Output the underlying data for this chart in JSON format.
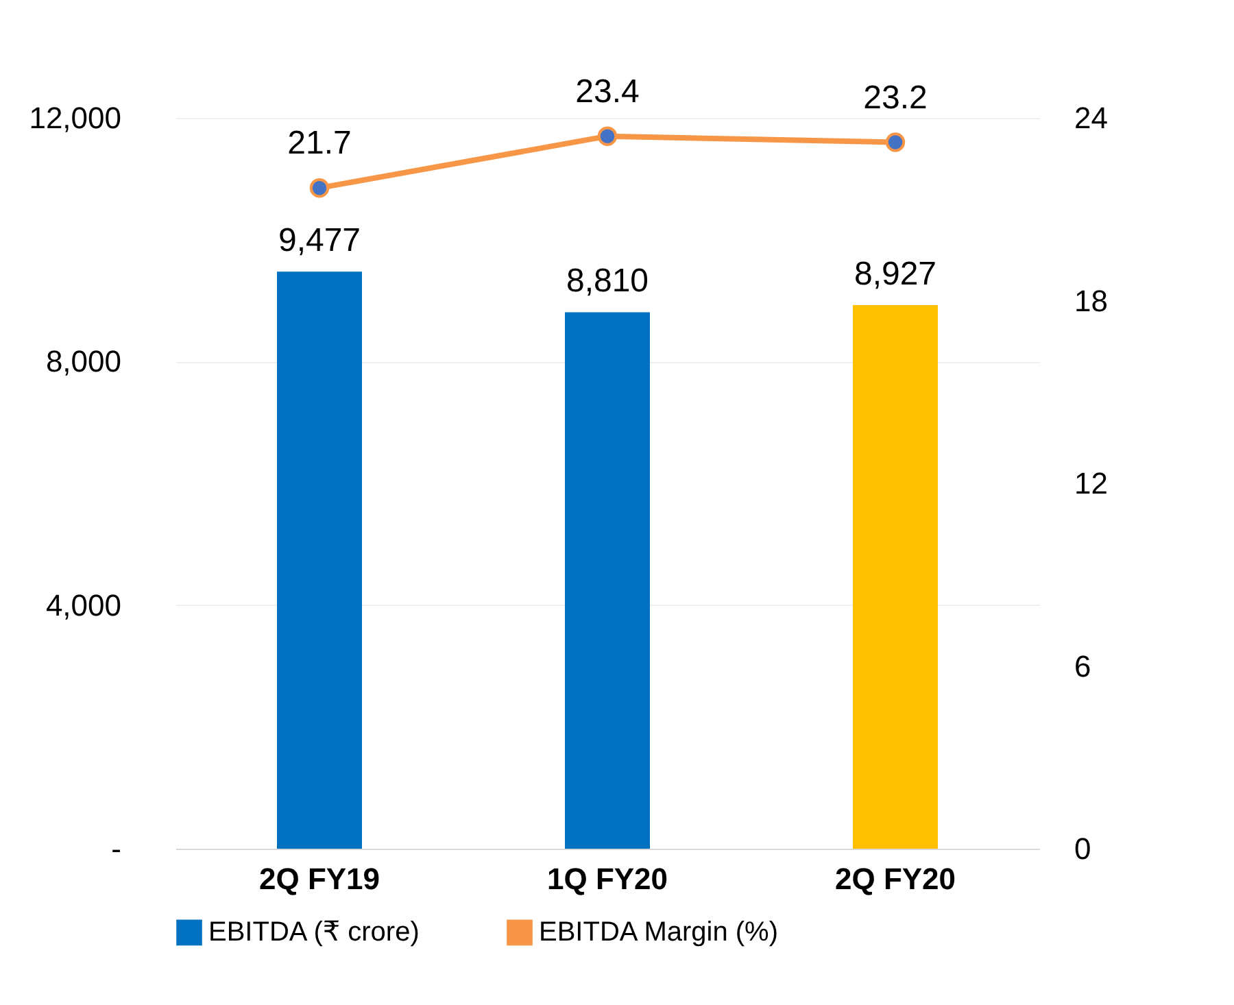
{
  "chart_data": {
    "type": "bar",
    "categories": [
      "2Q FY19",
      "1Q FY20",
      "2Q FY20"
    ],
    "series": [
      {
        "name": "EBITDA (₹ crore)",
        "color": "#0070c0",
        "colors": [
          "#0070c0",
          "#0070c0",
          "#ffc000"
        ],
        "values": [
          9477,
          8810,
          8927
        ],
        "value_labels": [
          "9,477",
          "8,810",
          "8,927"
        ]
      },
      {
        "name": "EBITDA Margin (%)",
        "type": "line",
        "axis": "y2",
        "color": "#f79646",
        "values": [
          21.7,
          23.4,
          23.2
        ]
      }
    ],
    "ylim": [
      0,
      12000
    ],
    "yticks": [
      {
        "value": 0,
        "label": "-"
      },
      {
        "value": 4000,
        "label": "4,000"
      },
      {
        "value": 8000,
        "label": "8,000"
      },
      {
        "value": 12000,
        "label": "12,000"
      }
    ],
    "y2lim": [
      0,
      24
    ],
    "y2ticks": [
      0,
      6,
      12,
      18,
      24
    ],
    "data_labels": true,
    "grid": "y",
    "legend": "bottom",
    "marker": "circle"
  }
}
